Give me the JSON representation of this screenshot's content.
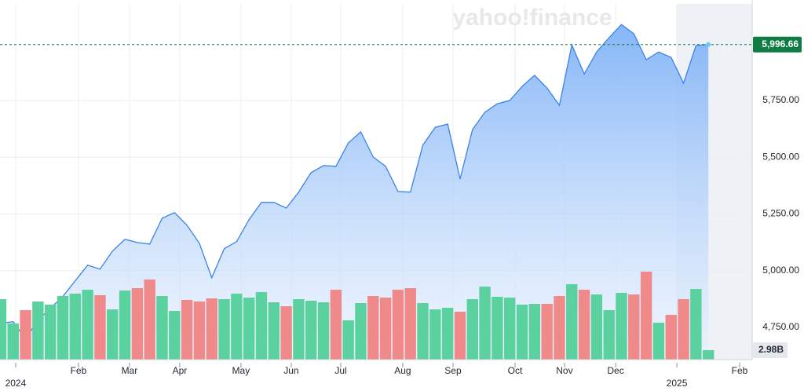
{
  "chart_data": {
    "type": "line",
    "watermark": "yahoo!finance",
    "x": [
      0,
      1,
      2,
      3,
      4,
      5,
      6,
      7,
      8,
      9,
      10,
      11,
      12,
      13,
      14,
      15,
      16,
      17,
      18,
      19,
      20,
      21,
      22,
      23,
      24,
      25,
      26,
      27,
      28,
      29,
      30,
      31,
      32,
      33,
      34,
      35,
      36,
      37,
      38,
      39,
      40,
      41,
      42,
      43,
      44,
      45,
      46,
      47,
      48,
      49,
      50,
      51,
      52,
      53,
      54,
      55,
      56,
      57
    ],
    "xlim": [
      -0.06,
      60.53
    ],
    "xticks": [
      {
        "value": 1.2,
        "label": "2024"
      },
      {
        "value": 6.26,
        "label": "Feb"
      },
      {
        "value": 10.37,
        "label": "Mar"
      },
      {
        "value": 14.42,
        "label": "Apr"
      },
      {
        "value": 19.35,
        "label": "May"
      },
      {
        "value": 23.4,
        "label": "Jun"
      },
      {
        "value": 27.39,
        "label": "Jul"
      },
      {
        "value": 32.38,
        "label": "Aug"
      },
      {
        "value": 36.43,
        "label": "Sep"
      },
      {
        "value": 41.43,
        "label": "Oct"
      },
      {
        "value": 45.41,
        "label": "Nov"
      },
      {
        "value": 49.53,
        "label": "Dec"
      },
      {
        "value": 54.46,
        "label": "2025"
      },
      {
        "value": 59.52,
        "label": "Feb"
      }
    ],
    "ylim": [
      4608,
      6193
    ],
    "yticks": [
      {
        "value": 4750,
        "label": "4,750.00"
      },
      {
        "value": 5000,
        "label": "5,000.00"
      },
      {
        "value": 5250,
        "label": "5,250.00"
      },
      {
        "value": 5500,
        "label": "5,500.00"
      },
      {
        "value": 5750,
        "label": "5,750.00"
      }
    ],
    "y2lim": [
      0,
      113.6
    ],
    "grid": true,
    "series": [
      {
        "type": "line",
        "color": "#3b82e8",
        "label_color": "#0e7d43",
        "values": [
          4768,
          4775,
          4699,
          4782,
          4834,
          4886,
          4955,
          5024,
          5007,
          5086,
          5138,
          5124,
          5117,
          5231,
          5256,
          5200,
          5121,
          4969,
          5097,
          5128,
          5225,
          5301,
          5301,
          5276,
          5346,
          5432,
          5463,
          5460,
          5563,
          5612,
          5501,
          5460,
          5349,
          5346,
          5553,
          5632,
          5646,
          5404,
          5622,
          5698,
          5736,
          5750,
          5812,
          5861,
          5805,
          5729,
          5995,
          5867,
          5964,
          6027,
          6085,
          6044,
          5930,
          5964,
          5940,
          5826,
          5992,
          5996.66
        ],
        "value_labels": [
          null,
          null,
          null,
          null,
          null,
          null,
          null,
          null,
          null,
          null,
          null,
          null,
          null,
          null,
          null,
          null,
          null,
          null,
          null,
          null,
          null,
          null,
          null,
          null,
          null,
          null,
          null,
          null,
          null,
          null,
          null,
          null,
          null,
          null,
          null,
          null,
          null,
          null,
          null,
          null,
          null,
          null,
          null,
          null,
          null,
          null,
          null,
          null,
          null,
          null,
          null,
          null,
          null,
          null,
          null,
          null,
          null,
          "5,996.66"
        ]
      },
      {
        "type": "bar",
        "axis": "y2",
        "label_color": "#e4e7ec",
        "values": [
          19.1,
          11.41,
          15.62,
          18.35,
          17.36,
          20.09,
          20.83,
          22.07,
          20.34,
          15.87,
          21.82,
          22.57,
          25.3,
          20.09,
          15.38,
          18.85,
          18.35,
          19.34,
          19.1,
          20.83,
          19.59,
          21.33,
          18.1,
          16.86,
          19.1,
          18.6,
          18.1,
          22.07,
          12.4,
          17.86,
          20.09,
          19.59,
          22.07,
          22.57,
          17.86,
          15.87,
          16.37,
          15.13,
          19.1,
          23.06,
          19.84,
          19.59,
          17.36,
          17.61,
          17.61,
          20.09,
          23.81,
          22.07,
          20.58,
          15.62,
          21.08,
          20.58,
          27.78,
          11.66,
          14.14,
          19.1,
          22.32,
          2.98
        ],
        "colors": [
          "#5bd1a0",
          "#5bd1a0",
          "#f0898a",
          "#5bd1a0",
          "#5bd1a0",
          "#5bd1a0",
          "#5bd1a0",
          "#5bd1a0",
          "#f0898a",
          "#5bd1a0",
          "#5bd1a0",
          "#f0898a",
          "#f0898a",
          "#5bd1a0",
          "#5bd1a0",
          "#f0898a",
          "#f0898a",
          "#f0898a",
          "#5bd1a0",
          "#5bd1a0",
          "#5bd1a0",
          "#5bd1a0",
          "#5bd1a0",
          "#f0898a",
          "#5bd1a0",
          "#5bd1a0",
          "#5bd1a0",
          "#f0898a",
          "#5bd1a0",
          "#5bd1a0",
          "#f0898a",
          "#f0898a",
          "#f0898a",
          "#f0898a",
          "#5bd1a0",
          "#5bd1a0",
          "#5bd1a0",
          "#f0898a",
          "#5bd1a0",
          "#5bd1a0",
          "#5bd1a0",
          "#5bd1a0",
          "#5bd1a0",
          "#5bd1a0",
          "#f0898a",
          "#f0898a",
          "#5bd1a0",
          "#f0898a",
          "#5bd1a0",
          "#5bd1a0",
          "#5bd1a0",
          "#f0898a",
          "#f0898a",
          "#5bd1a0",
          "#f0898a",
          "#f0898a",
          "#5bd1a0",
          "#5bd1a0"
        ],
        "value_labels": [
          null,
          null,
          null,
          null,
          null,
          null,
          null,
          null,
          null,
          null,
          null,
          null,
          null,
          null,
          null,
          null,
          null,
          null,
          null,
          null,
          null,
          null,
          null,
          null,
          null,
          null,
          null,
          null,
          null,
          null,
          null,
          null,
          null,
          null,
          null,
          null,
          null,
          null,
          null,
          null,
          null,
          null,
          null,
          null,
          null,
          null,
          null,
          null,
          null,
          null,
          null,
          null,
          null,
          null,
          null,
          null,
          null,
          "2.98B"
        ]
      }
    ]
  }
}
